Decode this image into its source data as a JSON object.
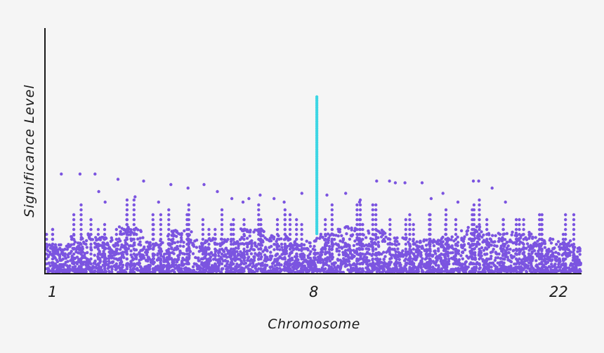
{
  "chart_data": {
    "type": "scatter",
    "subtype": "manhattan",
    "title": "",
    "xlabel": "Chromosome",
    "ylabel": "Significance Level",
    "x_tick_labels": [
      "1",
      "8",
      "22"
    ],
    "chromosome_count": 22,
    "y_range": [
      0,
      10
    ],
    "background_point_ceiling": [
      1.6,
      2.2,
      2.0,
      2.6,
      1.8,
      2.4,
      2.0,
      1.9,
      2.5,
      2.1,
      1.8,
      2.2,
      2.6,
      2.4,
      2.0,
      1.9,
      2.1,
      2.6,
      2.4,
      2.3,
      2.0,
      1.8
    ],
    "outlier_points": [
      {
        "x": 2.8,
        "y": 5.6
      },
      {
        "x": 6.3,
        "y": 5.6
      },
      {
        "x": 9.1,
        "y": 5.6
      },
      {
        "x": 13.4,
        "y": 5.3
      },
      {
        "x": 18.2,
        "y": 5.2
      },
      {
        "x": 23.3,
        "y": 5.0
      },
      {
        "x": 29.5,
        "y": 5.0
      },
      {
        "x": 32.0,
        "y": 4.6
      },
      {
        "x": 34.7,
        "y": 4.2
      },
      {
        "x": 36.8,
        "y": 4.0
      },
      {
        "x": 40.0,
        "y": 4.4
      },
      {
        "x": 42.6,
        "y": 4.2
      },
      {
        "x": 47.8,
        "y": 4.5
      },
      {
        "x": 56.0,
        "y": 4.5
      },
      {
        "x": 58.6,
        "y": 4.0
      },
      {
        "x": 61.8,
        "y": 5.2
      },
      {
        "x": 64.2,
        "y": 5.2
      },
      {
        "x": 65.3,
        "y": 5.1
      },
      {
        "x": 67.1,
        "y": 5.1
      },
      {
        "x": 70.3,
        "y": 5.1
      },
      {
        "x": 74.2,
        "y": 4.5
      },
      {
        "x": 79.9,
        "y": 5.2
      },
      {
        "x": 80.9,
        "y": 5.2
      },
      {
        "x": 83.4,
        "y": 4.8
      },
      {
        "x": 85.9,
        "y": 4.0
      },
      {
        "x": 26.5,
        "y": 4.8
      },
      {
        "x": 16.6,
        "y": 4.3
      },
      {
        "x": 11.0,
        "y": 4.0
      },
      {
        "x": 21.0,
        "y": 4.0
      },
      {
        "x": 44.5,
        "y": 4.0
      },
      {
        "x": 52.5,
        "y": 4.4
      },
      {
        "x": 72.0,
        "y": 4.2
      },
      {
        "x": 77.0,
        "y": 4.0
      },
      {
        "x": 9.8,
        "y": 4.6
      },
      {
        "x": 37.9,
        "y": 4.2
      }
    ],
    "highlighted_signal": {
      "chromosome": "8",
      "x": 50.6,
      "y_min": 2.2,
      "y_max": 10.0,
      "color": "#3dd6e4"
    },
    "colors": {
      "points": "#7b54e0",
      "highlight": "#3dd6e4",
      "axis": "#1a1a1a",
      "background": "#f5f5f5"
    },
    "grid": false,
    "legend": "none"
  }
}
